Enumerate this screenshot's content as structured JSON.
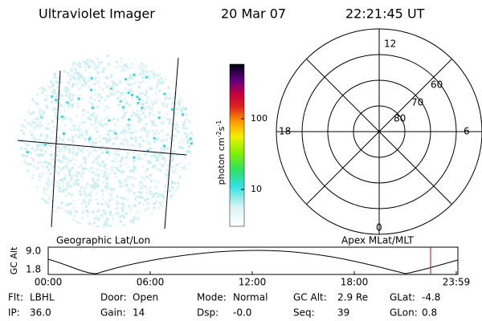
{
  "header": {
    "title": "Ultraviolet Imager",
    "date": "20 Mar 07",
    "time": "22:21:45 UT"
  },
  "image": {
    "label": "Geographic Lat/Lon"
  },
  "colorbar": {
    "unit": "photon cm",
    "unit_exp1": "-2",
    "unit_s": "s",
    "unit_exp2": "-1",
    "ticks": [
      "100",
      "10"
    ]
  },
  "polar": {
    "label": "Apex MLat/MLT",
    "mlt": [
      "12",
      "18",
      "6",
      "0"
    ],
    "mlat": [
      "60",
      "70",
      "80"
    ]
  },
  "altitude": {
    "ylabel": "GC Alt",
    "yticks": [
      "9.0",
      "1.8"
    ],
    "xticks": [
      "00:00",
      "06:00",
      "12:00",
      "18:00",
      "23:59"
    ]
  },
  "footer": {
    "rows": [
      [
        [
          "Flt:",
          "LBHL"
        ],
        [
          "Door:",
          "Open"
        ],
        [
          "Mode:",
          "Normal"
        ],
        [
          "GC Alt:",
          "2.9 Re"
        ],
        [
          "GLat:",
          "-4.8"
        ]
      ],
      [
        [
          "IP:",
          "36.0"
        ],
        [
          "Gain:",
          "14"
        ],
        [
          "Dsp:",
          "-0.0"
        ],
        [
          "Seq:",
          "39"
        ],
        [
          "GLon:",
          "0.8"
        ]
      ]
    ]
  }
}
